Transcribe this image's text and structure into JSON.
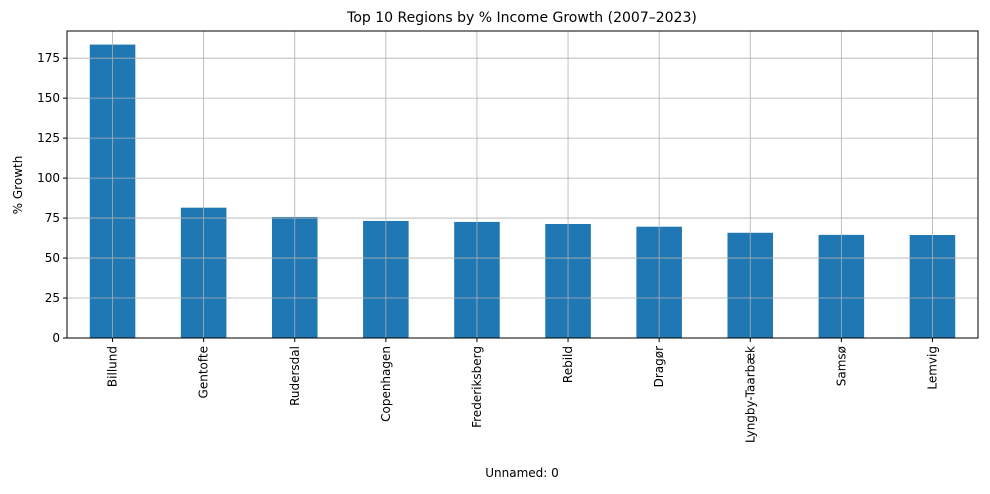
{
  "colors": {
    "bar": "#1f77b4",
    "grid": "#b0b0b0",
    "axis": "#000000"
  },
  "chart_data": {
    "type": "bar",
    "title": "Top 10 Regions by % Income Growth (2007–2023)",
    "xlabel": "Unnamed: 0",
    "ylabel": "% Growth",
    "categories": [
      "Billund",
      "Gentofte",
      "Rudersdal",
      "Copenhagen",
      "Frederiksberg",
      "Rebild",
      "Dragør",
      "Lyngby-Taarbæk",
      "Samsø",
      "Lemvig"
    ],
    "values": [
      183.5,
      81.5,
      75.7,
      73.2,
      72.6,
      71.3,
      69.6,
      65.8,
      64.5,
      64.4
    ],
    "ylim": [
      0,
      192
    ],
    "yticks": [
      0,
      25,
      50,
      75,
      100,
      125,
      150,
      175
    ],
    "grid": true,
    "legend": "none"
  }
}
